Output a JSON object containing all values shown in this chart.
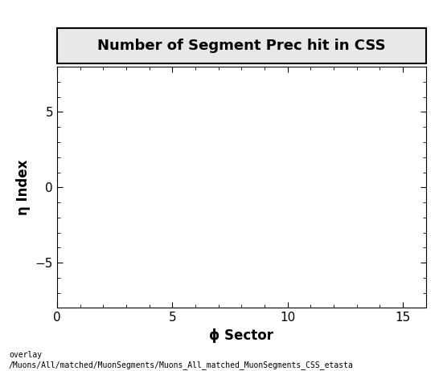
{
  "title": "Number of Segment Prec hit in CSS",
  "xlabel": "ϕ Sector",
  "ylabel": "η Index",
  "xlim": [
    0,
    16
  ],
  "ylim": [
    -8,
    8
  ],
  "xticks": [
    0,
    5,
    10,
    15
  ],
  "yticks": [
    -5,
    0,
    5
  ],
  "background_color": "#ffffff",
  "plot_bg_color": "#ffffff",
  "title_fontsize": 13,
  "axis_label_fontsize": 12,
  "tick_fontsize": 11,
  "footer_text": "overlay\n/Muons/All/matched/MuonSegments/Muons_All_matched_MuonSegments_CSS_etasta",
  "footer_fontsize": 7
}
